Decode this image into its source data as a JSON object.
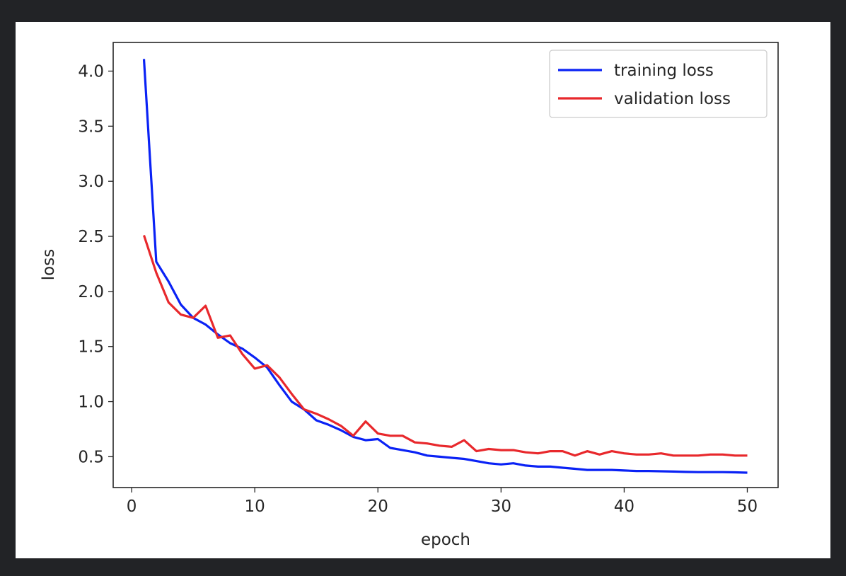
{
  "chart_data": {
    "type": "line",
    "xlabel": "epoch",
    "ylabel": "loss",
    "xlim": [
      -1.5,
      52.5
    ],
    "ylim": [
      0.22,
      4.26
    ],
    "xticks": [
      0,
      10,
      20,
      30,
      40,
      50
    ],
    "yticks": [
      0.5,
      1.0,
      1.5,
      2.0,
      2.5,
      3.0,
      3.5,
      4.0
    ],
    "xtick_labels": [
      "0",
      "10",
      "20",
      "30",
      "40",
      "50"
    ],
    "ytick_labels": [
      "0.5",
      "1.0",
      "1.5",
      "2.0",
      "2.5",
      "3.0",
      "3.5",
      "4.0"
    ],
    "grid": false,
    "legend_position": "upper right",
    "x": [
      1,
      2,
      3,
      4,
      5,
      6,
      7,
      8,
      9,
      10,
      11,
      12,
      13,
      14,
      15,
      16,
      17,
      18,
      19,
      20,
      21,
      22,
      23,
      24,
      25,
      26,
      27,
      28,
      29,
      30,
      31,
      32,
      33,
      34,
      35,
      36,
      37,
      38,
      39,
      40,
      41,
      42,
      43,
      44,
      45,
      46,
      47,
      48,
      49,
      50
    ],
    "series": [
      {
        "name": "training loss",
        "color": "#0a22f5",
        "values": [
          4.11,
          2.27,
          2.09,
          1.88,
          1.76,
          1.7,
          1.61,
          1.53,
          1.48,
          1.4,
          1.31,
          1.15,
          1.0,
          0.93,
          0.83,
          0.79,
          0.74,
          0.68,
          0.65,
          0.66,
          0.58,
          0.56,
          0.54,
          0.51,
          0.5,
          0.49,
          0.48,
          0.46,
          0.44,
          0.43,
          0.44,
          0.42,
          0.41,
          0.41,
          0.4,
          0.39,
          0.38,
          0.38,
          0.38,
          0.375,
          0.37,
          0.37,
          0.368,
          0.365,
          0.362,
          0.36,
          0.36,
          0.36,
          0.358,
          0.355
        ]
      },
      {
        "name": "validation loss",
        "color": "#e8282c",
        "values": [
          2.51,
          2.17,
          1.9,
          1.79,
          1.76,
          1.87,
          1.58,
          1.6,
          1.43,
          1.3,
          1.33,
          1.22,
          1.07,
          0.93,
          0.89,
          0.84,
          0.78,
          0.69,
          0.82,
          0.71,
          0.69,
          0.69,
          0.63,
          0.62,
          0.6,
          0.59,
          0.65,
          0.55,
          0.57,
          0.56,
          0.56,
          0.54,
          0.53,
          0.55,
          0.55,
          0.51,
          0.55,
          0.52,
          0.55,
          0.53,
          0.52,
          0.52,
          0.53,
          0.51,
          0.51,
          0.51,
          0.52,
          0.52,
          0.51,
          0.51
        ]
      }
    ]
  }
}
